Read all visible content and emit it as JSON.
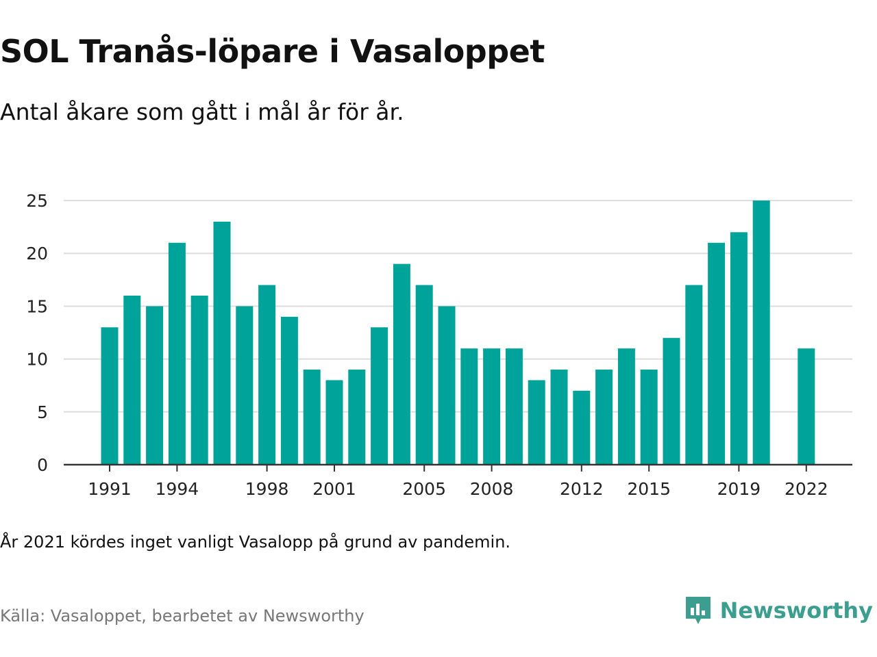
{
  "title": "SOL Tranås-löpare i Vasaloppet",
  "subtitle": "Antal åkare som gått i mål år för år.",
  "note": "År 2021 kördes inget vanligt Vasalopp på grund av pandemin.",
  "source": "Källa: Vasaloppet, bearbetet av Newsworthy",
  "logo": {
    "text": "Newsworthy",
    "icon": "newsworthy-chart-icon"
  },
  "colors": {
    "bar": "#00a39a",
    "grid": "#dddddd",
    "axis": "#333333",
    "logo": "#3b9e8f"
  },
  "chart_data": {
    "type": "bar",
    "title": "SOL Tranås-löpare i Vasaloppet",
    "xlabel": "",
    "ylabel": "",
    "ylim": [
      0,
      25
    ],
    "yticks": [
      0,
      5,
      10,
      15,
      20,
      25
    ],
    "xtick_labels": [
      1991,
      1994,
      1998,
      2001,
      2005,
      2008,
      2012,
      2015,
      2019,
      2022
    ],
    "grid": true,
    "categories": [
      1991,
      1992,
      1993,
      1994,
      1995,
      1996,
      1997,
      1998,
      1999,
      2000,
      2001,
      2002,
      2003,
      2004,
      2005,
      2006,
      2007,
      2008,
      2009,
      2010,
      2011,
      2012,
      2013,
      2014,
      2015,
      2016,
      2017,
      2018,
      2019,
      2020,
      2021,
      2022
    ],
    "values": [
      13,
      16,
      15,
      21,
      16,
      23,
      15,
      17,
      14,
      9,
      8,
      9,
      13,
      19,
      17,
      15,
      11,
      11,
      11,
      8,
      9,
      7,
      9,
      11,
      9,
      12,
      17,
      21,
      22,
      25,
      null,
      11
    ]
  }
}
